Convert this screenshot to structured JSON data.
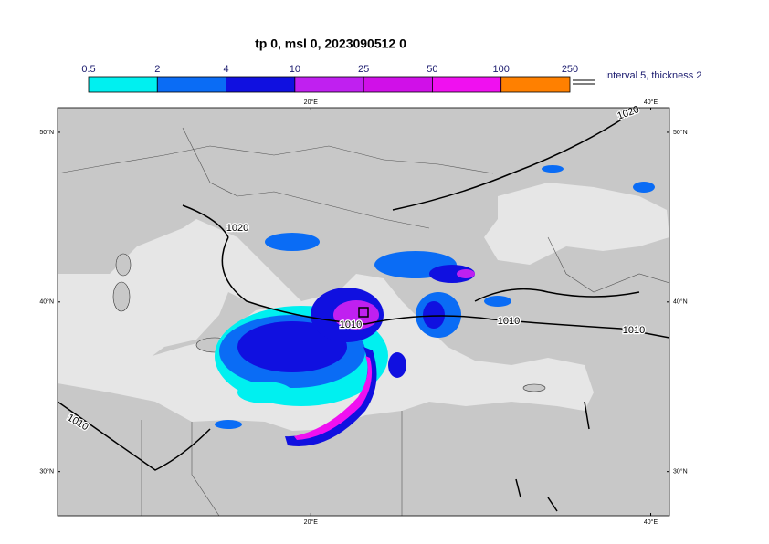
{
  "title": "tp 0, msl 0, 2023090512 0",
  "legend": {
    "bins": [
      0.5,
      2,
      4,
      10,
      25,
      50,
      100,
      250
    ],
    "colors": [
      "#00f0f0",
      "#0a6cf5",
      "#1010e0",
      "#c020f0",
      "#d010e8",
      "#f010f0",
      "#ff8000",
      "#ff0000"
    ],
    "note": "Interval 5, thickness 2"
  },
  "map": {
    "lon_range": [
      5.1,
      41.1
    ],
    "lat_range": [
      27.4,
      51.45
    ],
    "lon_ticks": [
      {
        "value": 20,
        "label": "20°E"
      },
      {
        "value": 40,
        "label": "40°E"
      }
    ],
    "lat_ticks": [
      {
        "value": 50,
        "label": "50°N"
      },
      {
        "value": 40,
        "label": "40°N"
      },
      {
        "value": 30,
        "label": "30°N"
      }
    ],
    "contour_labels": [
      1020,
      1020,
      1010,
      1010,
      1010,
      1010
    ]
  }
}
